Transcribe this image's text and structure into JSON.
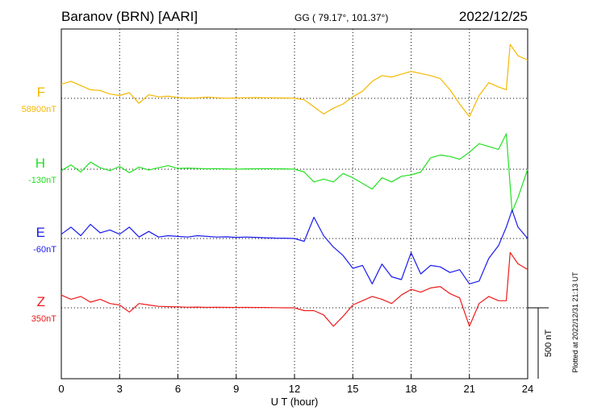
{
  "header": {
    "station": "Baranov (BRN)  [AARI]",
    "coords": "GG ( 79.17°, 101.37°)",
    "date": "2022/12/25"
  },
  "footer": {
    "plotted": "Plotted at 2022/12/31 21:13 UT"
  },
  "chart_data": {
    "type": "line",
    "xlabel": "U T (hour)",
    "xlim": [
      0,
      24
    ],
    "x_ticks": [
      "0",
      "3",
      "6",
      "9",
      "12",
      "15",
      "18",
      "21",
      "24"
    ],
    "scale_bar_label": "500 nT",
    "scale_bar_nT": 500,
    "series": [
      {
        "name": "F",
        "baseline_label": "58900nT",
        "color": "#f5b800",
        "x": [
          0,
          0.5,
          1,
          1.5,
          2,
          2.5,
          3,
          3.5,
          4,
          4.5,
          5,
          5.5,
          6,
          6.5,
          7,
          7.5,
          8,
          8.5,
          9,
          9.5,
          10,
          10.5,
          11,
          11.5,
          12,
          12.5,
          13,
          13.5,
          14,
          14.5,
          15,
          15.5,
          16,
          16.5,
          17,
          17.5,
          18,
          18.5,
          19,
          19.5,
          20,
          20.5,
          21,
          21.5,
          22,
          22.5,
          22.9,
          23.1,
          23.5,
          24
        ],
        "values": [
          100,
          120,
          90,
          60,
          55,
          30,
          20,
          40,
          -35,
          25,
          10,
          15,
          5,
          2,
          3,
          8,
          4,
          0,
          2,
          4,
          5,
          4,
          3,
          2,
          0,
          -10,
          -60,
          -110,
          -70,
          -40,
          10,
          50,
          120,
          160,
          150,
          170,
          190,
          175,
          160,
          140,
          60,
          -40,
          -130,
          20,
          110,
          80,
          60,
          380,
          300,
          270
        ]
      },
      {
        "name": "H",
        "baseline_label": "-130nT",
        "color": "#22e022",
        "x": [
          0,
          0.5,
          1,
          1.5,
          2,
          2.5,
          3,
          3.5,
          4,
          4.5,
          5,
          5.5,
          6,
          6.5,
          7,
          7.5,
          8,
          8.5,
          9,
          9.5,
          10,
          10.5,
          11,
          11.5,
          12,
          12.5,
          13,
          13.5,
          14,
          14.5,
          15,
          15.5,
          16,
          16.5,
          17,
          17.5,
          18,
          18.5,
          19,
          19.5,
          20,
          20.5,
          21,
          21.5,
          22,
          22.5,
          22.9,
          23.2,
          23.5,
          24
        ],
        "values": [
          -10,
          30,
          -20,
          50,
          10,
          -10,
          20,
          -25,
          15,
          -5,
          10,
          25,
          5,
          8,
          5,
          3,
          4,
          2,
          0,
          2,
          3,
          4,
          3,
          2,
          0,
          -20,
          -90,
          -70,
          -90,
          -30,
          -60,
          -100,
          -140,
          -60,
          -90,
          -50,
          -40,
          -20,
          80,
          100,
          90,
          70,
          120,
          180,
          160,
          140,
          250,
          -300,
          -200,
          0
        ]
      },
      {
        "name": "E",
        "baseline_label": "-60nT",
        "color": "#1a1aee",
        "x": [
          0,
          0.5,
          1,
          1.5,
          2,
          2.5,
          3,
          3.5,
          4,
          4.5,
          5,
          5.5,
          6,
          6.5,
          7,
          7.5,
          8,
          8.5,
          9,
          9.5,
          10,
          10.5,
          11,
          11.5,
          12,
          12.5,
          13,
          13.5,
          14,
          14.5,
          15,
          15.5,
          16,
          16.5,
          17,
          17.5,
          18,
          18.5,
          19,
          19.5,
          20,
          20.5,
          21,
          21.5,
          22,
          22.5,
          22.9,
          23.2,
          23.5,
          24
        ],
        "values": [
          30,
          80,
          20,
          100,
          40,
          60,
          30,
          80,
          10,
          50,
          10,
          20,
          15,
          10,
          20,
          15,
          10,
          12,
          8,
          10,
          8,
          5,
          3,
          2,
          0,
          -20,
          150,
          20,
          -60,
          -120,
          -210,
          -190,
          -320,
          -180,
          -270,
          -290,
          -100,
          -250,
          -190,
          -200,
          -240,
          -220,
          -320,
          -300,
          -140,
          -50,
          80,
          200,
          80,
          0
        ]
      },
      {
        "name": "Z",
        "baseline_label": "350nT",
        "color": "#ee1a1a",
        "x": [
          0,
          0.5,
          1,
          1.5,
          2,
          2.5,
          3,
          3.5,
          4,
          4.5,
          5,
          5.5,
          6,
          6.5,
          7,
          7.5,
          8,
          8.5,
          9,
          9.5,
          10,
          10.5,
          11,
          11.5,
          12,
          12.5,
          13,
          13.5,
          14,
          14.5,
          15,
          15.5,
          16,
          16.5,
          17,
          17.5,
          18,
          18.5,
          19,
          19.5,
          20,
          20.5,
          21,
          21.5,
          22,
          22.5,
          22.9,
          23.1,
          23.5,
          24
        ],
        "values": [
          90,
          60,
          80,
          40,
          60,
          30,
          20,
          -30,
          30,
          20,
          10,
          8,
          6,
          4,
          5,
          3,
          4,
          3,
          2,
          3,
          2,
          2,
          1,
          0,
          0,
          -20,
          -20,
          -50,
          -130,
          -60,
          20,
          50,
          80,
          60,
          30,
          90,
          130,
          110,
          140,
          150,
          100,
          70,
          -130,
          30,
          80,
          50,
          50,
          390,
          310,
          270
        ]
      }
    ]
  }
}
